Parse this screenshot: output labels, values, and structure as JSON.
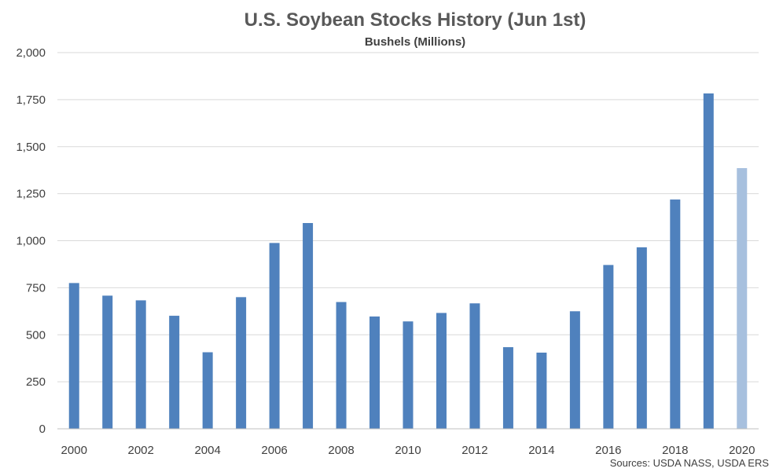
{
  "chart_data": {
    "type": "bar",
    "title": "U.S. Soybean Stocks History (Jun 1st)",
    "subtitle": "Bushels (Millions)",
    "source": "Sources: USDA NASS, USDA ERS",
    "categories": [
      "2000",
      "2001",
      "2002",
      "2003",
      "2004",
      "2005",
      "2006",
      "2007",
      "2008",
      "2009",
      "2010",
      "2011",
      "2012",
      "2013",
      "2014",
      "2015",
      "2016",
      "2017",
      "2018",
      "2019",
      "2020"
    ],
    "x_tick_labels": [
      "2000",
      "",
      "2002",
      "",
      "2004",
      "",
      "2006",
      "",
      "2008",
      "",
      "2010",
      "",
      "2012",
      "",
      "2014",
      "",
      "2016",
      "",
      "2018",
      "",
      "2020"
    ],
    "values": [
      775,
      708,
      683,
      601,
      407,
      700,
      988,
      1094,
      674,
      597,
      571,
      616,
      667,
      434,
      405,
      625,
      871,
      965,
      1219,
      1783,
      1386
    ],
    "ylim": [
      0,
      2000
    ],
    "y_ticks": [
      0,
      250,
      500,
      750,
      1000,
      1250,
      1500,
      1750,
      2000
    ],
    "y_tick_labels": [
      "0",
      "250",
      "500",
      "750",
      "1,000",
      "1,250",
      "1,500",
      "1,750",
      "2,000"
    ],
    "colors": {
      "bar": "#4f81bd",
      "highlight": "#a7c0de"
    },
    "highlight_categories": [
      "2020"
    ],
    "grid": true,
    "legend": "none"
  }
}
